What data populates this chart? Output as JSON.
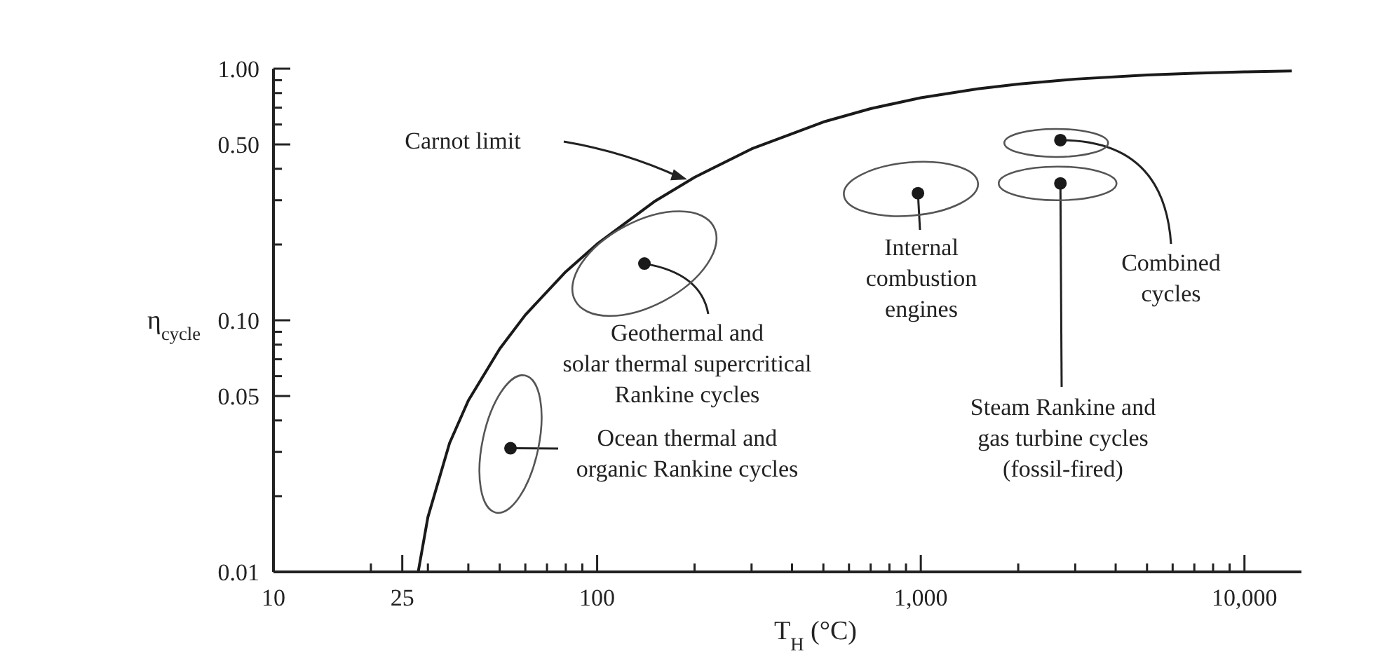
{
  "chart_data": {
    "type": "line",
    "xlabel": "T$_{H}$ (°C)",
    "ylabel": "η$_{cycle}$",
    "log": "xy",
    "xlim": [
      10,
      15000
    ],
    "xticks": [
      10,
      {
        "value": 20,
        "label": null
      },
      25,
      {
        "value": 30,
        "label": null
      },
      {
        "value": 40,
        "label": null
      },
      {
        "value": 50,
        "label": null
      },
      {
        "value": 60,
        "label": null
      },
      {
        "value": 70,
        "label": null
      },
      {
        "value": 80,
        "label": null
      },
      {
        "value": 90,
        "label": null
      },
      100,
      {
        "value": 200,
        "label": null
      },
      {
        "value": 300,
        "label": null
      },
      {
        "value": 400,
        "label": null
      },
      {
        "value": 500,
        "label": null
      },
      {
        "value": 600,
        "label": null
      },
      {
        "value": 700,
        "label": null
      },
      {
        "value": 800,
        "label": null
      },
      {
        "value": 900,
        "label": null
      },
      {
        "value": 1000,
        "label": "1,000"
      },
      {
        "value": 2000,
        "label": null
      },
      {
        "value": 3000,
        "label": null
      },
      {
        "value": 4000,
        "label": null
      },
      {
        "value": 5000,
        "label": null
      },
      {
        "value": 6000,
        "label": null
      },
      {
        "value": 7000,
        "label": null
      },
      {
        "value": 8000,
        "label": null
      },
      {
        "value": 9000,
        "label": null
      },
      {
        "value": 10000,
        "label": "10,000"
      }
    ],
    "ylim": [
      0.01,
      1
    ],
    "yticks": [
      0.01,
      {
        "value": 0.02,
        "label": null
      },
      {
        "value": 0.03,
        "label": null
      },
      {
        "value": 0.04,
        "label": null
      },
      0.05,
      {
        "value": 0.06,
        "label": null
      },
      {
        "value": 0.07,
        "label": null
      },
      {
        "value": 0.08,
        "label": null
      },
      {
        "value": 0.09,
        "label": null
      },
      {
        "value": 0.1,
        "label": "0.10"
      },
      {
        "value": 0.2,
        "label": null
      },
      {
        "value": 0.3,
        "label": null
      },
      {
        "value": 0.4,
        "label": null
      },
      {
        "value": 0.5,
        "label": "0.50"
      },
      {
        "value": 0.6,
        "label": null
      },
      {
        "value": 0.7,
        "label": null
      },
      {
        "value": 0.8,
        "label": null
      },
      {
        "value": 0.9,
        "label": null
      },
      {
        "value": 1,
        "label": "1.00"
      }
    ],
    "series": [
      {
        "color": "#1a1a1a",
        "x": [
          28,
          30,
          35,
          40,
          50,
          60,
          80,
          100,
          150,
          200,
          300,
          500,
          700,
          1000,
          1500,
          2000,
          3000,
          5000,
          7000,
          10000,
          14000
        ],
        "values": [
          0.01,
          0.0165,
          0.0325,
          0.048,
          0.077,
          0.105,
          0.156,
          0.201,
          0.296,
          0.37,
          0.48,
          0.614,
          0.694,
          0.766,
          0.832,
          0.869,
          0.909,
          0.9435,
          0.959,
          0.971,
          0.979
        ]
      },
      {
        "type": "scatter",
        "color": "#1a1a1a",
        "marker": "circle",
        "x": [
          140,
          54,
          980,
          2700,
          2700
        ],
        "values": [
          0.168,
          0.031,
          0.32,
          0.35,
          0.52
        ]
      }
    ],
    "annotations": [
      "Carnot limit",
      {
        "text": "Geothermal and\nsolar thermal supercritical\nRankine cycles",
        "x": 140,
        "y": 0.168
      },
      {
        "text": "Ocean thermal and\norganic Rankine cycles",
        "x": 54,
        "y": 0.031
      },
      {
        "text": "Internal\ncombustion\nengines",
        "x": 980,
        "y": 0.32
      },
      {
        "text": "Combined\ncycles",
        "x": 2700,
        "y": 0.52
      },
      {
        "text": "Steam Rankine and\ngas turbine cycles\n(fossil-fired)",
        "x": 2700,
        "y": 0.35
      }
    ]
  }
}
